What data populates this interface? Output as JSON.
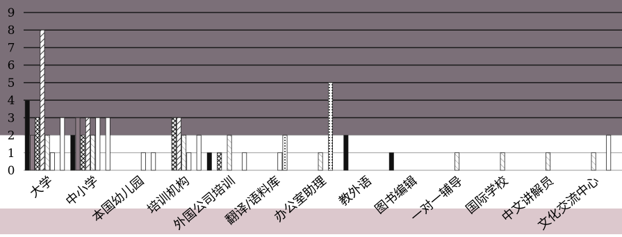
{
  "chart_data": {
    "type": "bar",
    "title": "",
    "xlabel": "",
    "ylabel": "",
    "ylim": [
      0,
      9
    ],
    "y_ticks": [
      "0",
      "1",
      "2",
      "3",
      "4",
      "5",
      "6",
      "7",
      "8",
      "9"
    ],
    "grid": true,
    "legend": "none",
    "categories": [
      "大学",
      "中小学",
      "本国幼儿园",
      "培训机构",
      "外国公司培训",
      "翻译/语料库",
      "办公室助理",
      "教外语",
      "图书编辑",
      "一对一辅导",
      "国际学校",
      "中文讲解员",
      "文化交流中心"
    ],
    "series": [
      {
        "values": [
          4,
          2,
          0,
          0,
          1,
          0,
          0,
          2,
          1,
          0,
          0,
          0,
          0
        ]
      },
      {
        "values": [
          2,
          3,
          0,
          0,
          0,
          0,
          0,
          0,
          0,
          0,
          0,
          0,
          0
        ]
      },
      {
        "values": [
          3,
          2,
          0,
          3,
          1,
          0,
          0,
          0,
          0,
          0,
          0,
          0,
          0
        ]
      },
      {
        "values": [
          8,
          3,
          0,
          3,
          0,
          0,
          0,
          0,
          0,
          0,
          0,
          0,
          0
        ]
      },
      {
        "values": [
          2,
          2,
          0,
          2,
          2,
          0,
          1,
          0,
          0,
          1,
          1,
          1,
          1
        ]
      },
      {
        "values": [
          1,
          3,
          1,
          1,
          0,
          1,
          0,
          0,
          0,
          0,
          0,
          0,
          0
        ]
      },
      {
        "values": [
          0,
          0,
          0,
          0,
          0,
          2,
          5,
          0,
          0,
          0,
          0,
          0,
          0
        ]
      },
      {
        "values": [
          3,
          3,
          1,
          2,
          1,
          0,
          0,
          0,
          0,
          0,
          0,
          0,
          2
        ]
      }
    ],
    "colors": {
      "plot_background": "#7b6f78",
      "band_background": "#ffffff",
      "page_bottom": "#dcc8cd",
      "gridline": "#1a1a1a",
      "solid_dark": "#111111",
      "solid_mauve": "#8b7b84",
      "hatch": "#444444",
      "bar_light": "#ffffff",
      "text": "#000000"
    }
  }
}
